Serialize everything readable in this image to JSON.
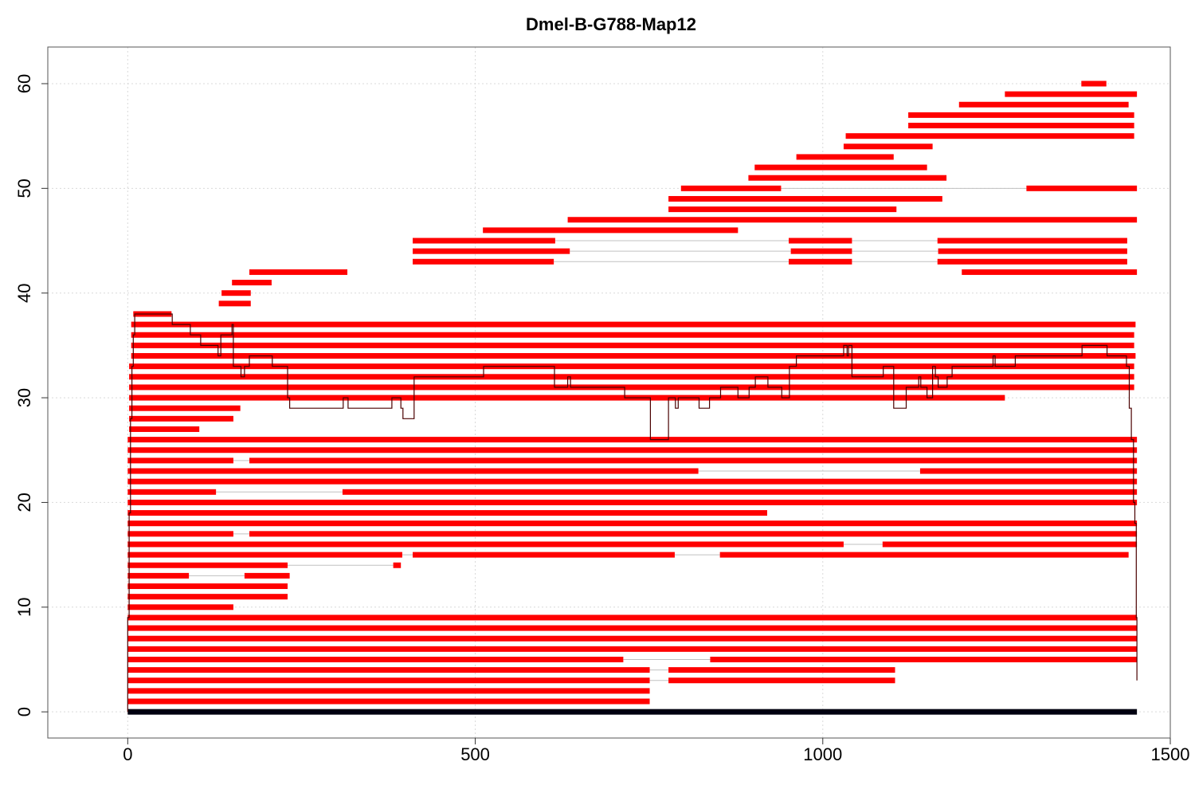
{
  "chart_data": {
    "type": "bar",
    "title": "Dmel-B-G788-Map12",
    "xlabel": "",
    "ylabel": "",
    "xlim": [
      -115,
      1500
    ],
    "ylim": [
      -2.5,
      63.5
    ],
    "x_ticks": [
      "0",
      "500",
      "1000",
      "1500"
    ],
    "y_ticks": [
      "0",
      "10",
      "20",
      "30",
      "40",
      "50",
      "60"
    ],
    "grid": true,
    "colors": {
      "segments": "#ff0000",
      "reference": "#000010",
      "coverage": "#4a0000",
      "gap": "#c0c0c0",
      "grid": "#d9d9d9"
    },
    "reference": {
      "y": 0,
      "x0": 0,
      "x1": 1452
    },
    "segments": [
      {
        "y": 1,
        "x0": 0,
        "x1": 751
      },
      {
        "y": 2,
        "x0": 0,
        "x1": 751
      },
      {
        "y": 3,
        "x0": 0,
        "x1": 751,
        "gap": [
          751,
          778
        ],
        "x2": 778,
        "x3": 1104
      },
      {
        "y": 4,
        "x0": 0,
        "x1": 751,
        "gap": [
          751,
          778
        ],
        "x2": 778,
        "x3": 1104
      },
      {
        "y": 5,
        "x0": 0,
        "x1": 713,
        "gap": [
          713,
          838
        ],
        "x2": 838,
        "x3": 1452
      },
      {
        "y": 6,
        "x0": 0,
        "x1": 1452
      },
      {
        "y": 7,
        "x0": 0,
        "x1": 1452
      },
      {
        "y": 8,
        "x0": 0,
        "x1": 1452
      },
      {
        "y": 9,
        "x0": 0,
        "x1": 1452
      },
      {
        "y": 10,
        "x0": 0,
        "x1": 152
      },
      {
        "y": 11,
        "x0": 0,
        "x1": 230
      },
      {
        "y": 12,
        "x0": 0,
        "x1": 230
      },
      {
        "y": 13,
        "x0": 0,
        "x1": 88,
        "gap": [
          88,
          168
        ],
        "x2": 168,
        "x3": 233
      },
      {
        "y": 14,
        "x0": 0,
        "x1": 230,
        "gap": [
          230,
          382
        ],
        "x2": 382,
        "x3": 393
      },
      {
        "y": 15,
        "x0": 0,
        "x1": 395,
        "gap": [
          395,
          410
        ],
        "x2": 410,
        "x3": 787,
        "gap2": [
          787,
          852
        ],
        "x4": 852,
        "x5": 1440
      },
      {
        "y": 16,
        "x0": 0,
        "x1": 1030,
        "gap": [
          1030,
          1086
        ],
        "x2": 1086,
        "x3": 1452
      },
      {
        "y": 17,
        "x0": 0,
        "x1": 152,
        "gap": [
          152,
          175
        ],
        "x2": 175,
        "x3": 1452
      },
      {
        "y": 18,
        "x0": 0,
        "x1": 1452
      },
      {
        "y": 19,
        "x0": 0,
        "x1": 920
      },
      {
        "y": 20,
        "x0": 0,
        "x1": 1452
      },
      {
        "y": 21,
        "x0": 0,
        "x1": 127,
        "gap": [
          127,
          309
        ],
        "x2": 309,
        "x3": 1452
      },
      {
        "y": 22,
        "x0": 0,
        "x1": 1452
      },
      {
        "y": 23,
        "x0": 0,
        "x1": 821,
        "gap": [
          821,
          1140
        ],
        "x2": 1140,
        "x3": 1452
      },
      {
        "y": 24,
        "x0": 0,
        "x1": 152,
        "gap": [
          152,
          175
        ],
        "x2": 175,
        "x3": 1452
      },
      {
        "y": 25,
        "x0": 0,
        "x1": 1452
      },
      {
        "y": 26,
        "x0": 0,
        "x1": 1452
      },
      {
        "y": 27,
        "x0": 2,
        "x1": 103
      },
      {
        "y": 28,
        "x0": 2,
        "x1": 152
      },
      {
        "y": 29,
        "x0": 2,
        "x1": 162
      },
      {
        "y": 30,
        "x0": 2,
        "x1": 1262
      },
      {
        "y": 31,
        "x0": 2,
        "x1": 1448
      },
      {
        "y": 32,
        "x0": 2,
        "x1": 1448
      },
      {
        "y": 33,
        "x0": 2,
        "x1": 1448
      },
      {
        "y": 34,
        "x0": 5,
        "x1": 1450
      },
      {
        "y": 35,
        "x0": 5,
        "x1": 1448
      },
      {
        "y": 36,
        "x0": 5,
        "x1": 1448
      },
      {
        "y": 37,
        "x0": 5,
        "x1": 1450
      },
      {
        "y": 38,
        "x0": 8,
        "x1": 63
      },
      {
        "y": 39,
        "x0": 131,
        "x1": 177
      },
      {
        "y": 40,
        "x0": 135,
        "x1": 177
      },
      {
        "y": 41,
        "x0": 150,
        "x1": 207
      },
      {
        "y": 42,
        "x0": 175,
        "x1": 316
      },
      {
        "y": 42,
        "x0": 1200,
        "x1": 1452
      },
      {
        "y": 43,
        "x0": 410,
        "x1": 613,
        "gap": [
          613,
          951
        ],
        "x2": 951,
        "x3": 1042,
        "gap2": [
          1042,
          1165
        ],
        "x4": 1165,
        "x5": 1438
      },
      {
        "y": 44,
        "x0": 410,
        "x1": 636,
        "gap": [
          636,
          954
        ],
        "x2": 954,
        "x3": 1042,
        "gap2": [
          1042,
          1166
        ],
        "x4": 1166,
        "x5": 1438
      },
      {
        "y": 45,
        "x0": 410,
        "x1": 615,
        "gap": [
          615,
          951
        ],
        "x2": 951,
        "x3": 1042,
        "gap2": [
          1042,
          1165
        ],
        "x4": 1165,
        "x5": 1438
      },
      {
        "y": 46,
        "x0": 511,
        "x1": 878
      },
      {
        "y": 47,
        "x0": 633,
        "x1": 1452
      },
      {
        "y": 48,
        "x0": 778,
        "x1": 1106
      },
      {
        "y": 49,
        "x0": 778,
        "x1": 1172
      },
      {
        "y": 50,
        "x0": 796,
        "x1": 940,
        "gap": [
          940,
          1293
        ],
        "x2": 1293,
        "x3": 1452
      },
      {
        "y": 51,
        "x0": 893,
        "x1": 1178
      },
      {
        "y": 52,
        "x0": 902,
        "x1": 1150
      },
      {
        "y": 53,
        "x0": 962,
        "x1": 1102
      },
      {
        "y": 54,
        "x0": 1030,
        "x1": 1158
      },
      {
        "y": 55,
        "x0": 1033,
        "x1": 1448
      },
      {
        "y": 56,
        "x0": 1123,
        "x1": 1448
      },
      {
        "y": 57,
        "x0": 1123,
        "x1": 1448
      },
      {
        "y": 58,
        "x0": 1196,
        "x1": 1440
      },
      {
        "y": 59,
        "x0": 1262,
        "x1": 1452
      },
      {
        "y": 60,
        "x0": 1372,
        "x1": 1408
      }
    ],
    "coverage_line": [
      [
        0,
        0
      ],
      [
        0,
        9
      ],
      [
        2,
        9
      ],
      [
        2,
        19
      ],
      [
        4,
        19
      ],
      [
        4,
        28
      ],
      [
        6,
        28
      ],
      [
        6,
        33
      ],
      [
        8,
        33
      ],
      [
        8,
        36
      ],
      [
        10,
        36
      ],
      [
        10,
        38
      ],
      [
        64,
        38
      ],
      [
        64,
        37
      ],
      [
        90,
        37
      ],
      [
        90,
        36
      ],
      [
        105,
        36
      ],
      [
        105,
        35
      ],
      [
        130,
        35
      ],
      [
        130,
        34
      ],
      [
        134,
        34
      ],
      [
        134,
        36
      ],
      [
        150,
        36
      ],
      [
        150,
        37
      ],
      [
        152,
        37
      ],
      [
        152,
        33
      ],
      [
        163,
        33
      ],
      [
        163,
        32
      ],
      [
        168,
        32
      ],
      [
        168,
        33
      ],
      [
        175,
        33
      ],
      [
        175,
        34
      ],
      [
        208,
        34
      ],
      [
        208,
        33
      ],
      [
        230,
        33
      ],
      [
        230,
        30
      ],
      [
        233,
        30
      ],
      [
        233,
        29
      ],
      [
        310,
        29
      ],
      [
        310,
        30
      ],
      [
        317,
        30
      ],
      [
        317,
        29
      ],
      [
        380,
        29
      ],
      [
        380,
        30
      ],
      [
        393,
        30
      ],
      [
        393,
        29
      ],
      [
        396,
        29
      ],
      [
        396,
        28
      ],
      [
        412,
        28
      ],
      [
        412,
        32
      ],
      [
        512,
        32
      ],
      [
        512,
        33
      ],
      [
        614,
        33
      ],
      [
        614,
        31
      ],
      [
        633,
        31
      ],
      [
        633,
        32
      ],
      [
        637,
        32
      ],
      [
        637,
        31
      ],
      [
        715,
        31
      ],
      [
        715,
        30
      ],
      [
        752,
        30
      ],
      [
        752,
        26
      ],
      [
        778,
        26
      ],
      [
        778,
        30
      ],
      [
        788,
        30
      ],
      [
        788,
        29
      ],
      [
        792,
        29
      ],
      [
        792,
        30
      ],
      [
        822,
        30
      ],
      [
        822,
        29
      ],
      [
        837,
        29
      ],
      [
        837,
        30
      ],
      [
        853,
        30
      ],
      [
        853,
        31
      ],
      [
        878,
        31
      ],
      [
        878,
        30
      ],
      [
        894,
        30
      ],
      [
        894,
        31
      ],
      [
        903,
        31
      ],
      [
        903,
        32
      ],
      [
        921,
        32
      ],
      [
        921,
        31
      ],
      [
        941,
        31
      ],
      [
        941,
        30
      ],
      [
        952,
        30
      ],
      [
        952,
        33
      ],
      [
        962,
        33
      ],
      [
        962,
        34
      ],
      [
        1030,
        34
      ],
      [
        1030,
        35
      ],
      [
        1035,
        35
      ],
      [
        1035,
        34
      ],
      [
        1037,
        34
      ],
      [
        1037,
        35
      ],
      [
        1042,
        35
      ],
      [
        1042,
        32
      ],
      [
        1087,
        32
      ],
      [
        1087,
        33
      ],
      [
        1102,
        33
      ],
      [
        1102,
        29
      ],
      [
        1120,
        29
      ],
      [
        1120,
        31
      ],
      [
        1138,
        31
      ],
      [
        1138,
        32
      ],
      [
        1141,
        32
      ],
      [
        1141,
        31
      ],
      [
        1150,
        31
      ],
      [
        1150,
        30
      ],
      [
        1158,
        30
      ],
      [
        1158,
        33
      ],
      [
        1162,
        33
      ],
      [
        1162,
        32
      ],
      [
        1166,
        32
      ],
      [
        1166,
        31
      ],
      [
        1179,
        31
      ],
      [
        1179,
        32
      ],
      [
        1186,
        32
      ],
      [
        1186,
        33
      ],
      [
        1245,
        33
      ],
      [
        1245,
        34
      ],
      [
        1248,
        34
      ],
      [
        1248,
        33
      ],
      [
        1277,
        33
      ],
      [
        1277,
        34
      ],
      [
        1373,
        34
      ],
      [
        1373,
        35
      ],
      [
        1409,
        35
      ],
      [
        1409,
        34
      ],
      [
        1437,
        34
      ],
      [
        1437,
        33
      ],
      [
        1441,
        33
      ],
      [
        1441,
        29
      ],
      [
        1444,
        29
      ],
      [
        1444,
        26
      ],
      [
        1447,
        26
      ],
      [
        1447,
        20
      ],
      [
        1449,
        20
      ],
      [
        1449,
        18
      ],
      [
        1451,
        18
      ],
      [
        1451,
        9
      ],
      [
        1452,
        9
      ],
      [
        1452,
        3
      ]
    ]
  }
}
